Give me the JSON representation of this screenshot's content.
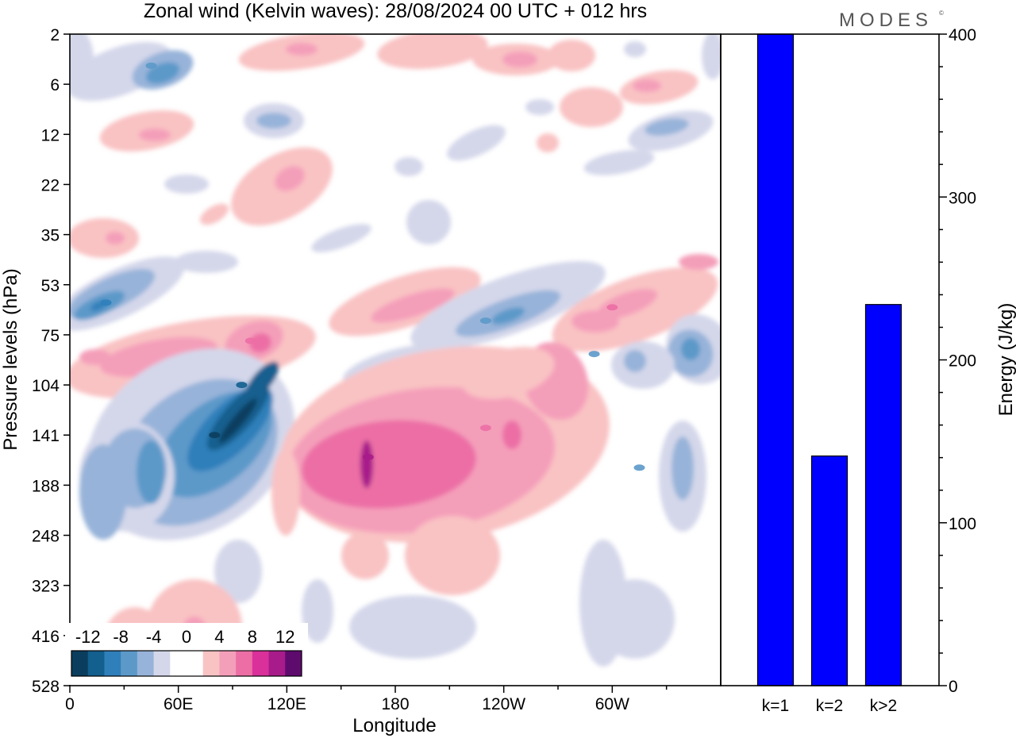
{
  "title": "Zonal wind (Kelvin waves):  28/08/2024  00 UTC  + 012 hrs",
  "logo": "MODES",
  "logo_mark": "©",
  "colors": {
    "neg12": "#0b3e5e",
    "neg10": "#135f8e",
    "neg8": "#2f7fba",
    "neg6": "#5c99c9",
    "neg4": "#97b3d9",
    "neg2": "#d4d7ea",
    "zero": "#ffffff",
    "pos2": "#f9c2c3",
    "pos4": "#f49fba",
    "pos6": "#ec6ea5",
    "pos8": "#d9309a",
    "pos10": "#a71c8a",
    "pos12": "#5e0b6e",
    "bar": "#0000ff",
    "axis": "#000000"
  },
  "chart_data": [
    {
      "type": "heatmap",
      "title": "Zonal wind (Kelvin waves):  28/08/2024  00 UTC  + 012 hrs",
      "xlabel": "Longitude",
      "ylabel": "Pressure levels (hPa)",
      "x_ticks": [
        "0",
        "60E",
        "120E",
        "180",
        "120W",
        "60W"
      ],
      "x_tick_degrees": [
        0,
        60,
        120,
        180,
        240,
        300
      ],
      "xlim": [
        0,
        360
      ],
      "y_ticks": [
        "2",
        "6",
        "12",
        "22",
        "35",
        "53",
        "75",
        "104",
        "141",
        "188",
        "248",
        "323",
        "416",
        "528"
      ],
      "colorbar": {
        "labels": [
          "-12",
          "-8",
          "-4",
          "0",
          "4",
          "8",
          "12"
        ],
        "levels": [
          -12,
          -10,
          -8,
          -6,
          -4,
          -2,
          0,
          2,
          4,
          6,
          8,
          10,
          12
        ]
      },
      "features": [
        {
          "lon": 80,
          "level": 141,
          "value": -12
        },
        {
          "lon": 95,
          "level": 104,
          "value": -10
        },
        {
          "lon": 20,
          "level": 60,
          "value": -8
        },
        {
          "lon": 45,
          "level": 4,
          "value": -6
        },
        {
          "lon": 230,
          "level": 68,
          "value": -6
        },
        {
          "lon": 290,
          "level": 85,
          "value": -6
        },
        {
          "lon": 315,
          "level": 170,
          "value": -6
        },
        {
          "lon": 165,
          "level": 160,
          "value": 10
        },
        {
          "lon": 100,
          "level": 78,
          "value": 6
        },
        {
          "lon": 230,
          "level": 135,
          "value": 6
        },
        {
          "lon": 300,
          "level": 62,
          "value": 6
        }
      ]
    },
    {
      "type": "bar",
      "categories": [
        "k=1",
        "k=2",
        "k>2"
      ],
      "values": [
        400,
        141,
        234
      ],
      "ylabel": "Energy (J/kg)",
      "ylim": [
        0,
        400
      ],
      "y_ticks": [
        0,
        100,
        200,
        300,
        400
      ]
    }
  ]
}
